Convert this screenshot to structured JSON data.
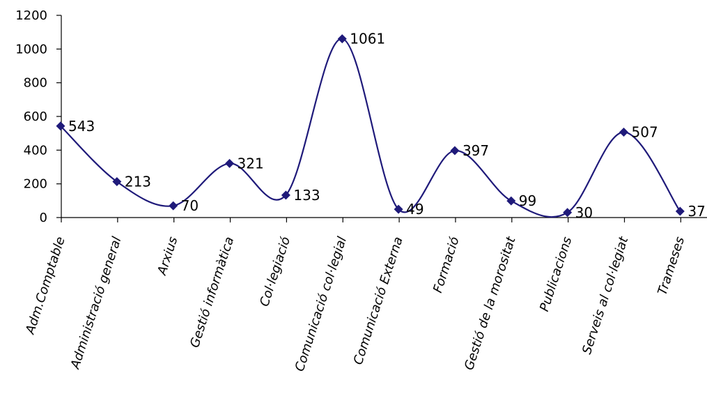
{
  "chart_data": {
    "type": "line",
    "title": "",
    "xlabel": "",
    "ylabel": "",
    "categories": [
      "Adm.Comptable",
      "Administració general",
      "Arxius",
      "Gestió informàtica",
      "Col·legiació",
      "Comunicació col·legial",
      "Comunicació Externa",
      "Formació",
      "Gestió de la morositat",
      "Publicacions",
      "Serveis al col·legiat",
      "Trameses"
    ],
    "series": [
      {
        "values": [
          543,
          213,
          70,
          321,
          133,
          1061,
          49,
          397,
          99,
          30,
          507,
          37
        ]
      }
    ],
    "ylim": [
      0,
      1200
    ],
    "yticks": [
      "0",
      "200",
      "400",
      "600",
      "800",
      "1000",
      "1200"
    ],
    "smooth": true,
    "data_labels": true,
    "legend": "none",
    "grid": false,
    "colors": {
      "line": "#1f1a7a",
      "marker": "#1f1a7a",
      "axis": "#000000"
    }
  }
}
